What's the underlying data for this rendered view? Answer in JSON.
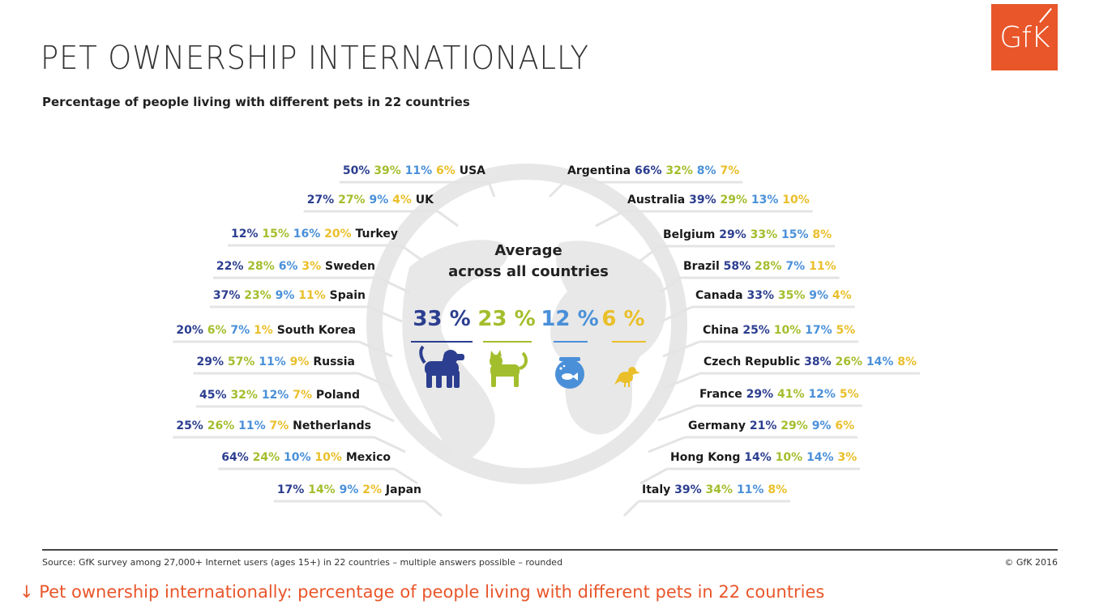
{
  "header": {
    "title": "PET OWNERSHIP INTERNATIONALLY",
    "subtitle": "Percentage of people living with different pets in 22 countries",
    "logo_text": "GfK"
  },
  "footer": {
    "source": "Source:  GfK survey among 27,000+ Internet users (ages 15+) in 22 countries – multiple answers possible – rounded",
    "copyright": "© GfK 2016"
  },
  "caption": "↓ Pet ownership internationally: percentage of people living with different pets in 22 countries",
  "colors": {
    "dog": "#2c3e8f",
    "cat": "#a3be2d",
    "fish": "#4a90d9",
    "bird": "#eabf2a",
    "globe": "#e7e7e7",
    "brand": "#e8562a"
  },
  "chart_data": {
    "type": "table",
    "series_icons": [
      "dog-icon",
      "cat-icon",
      "fish-icon",
      "bird-icon"
    ],
    "average": {
      "label_line1": "Average",
      "label_line2": "across all countries",
      "values": [
        "33 %",
        "23 %",
        "12 %",
        "6 %"
      ]
    },
    "left": [
      {
        "country": "USA",
        "values": [
          "50%",
          "39%",
          "11%",
          "6%"
        ]
      },
      {
        "country": "UK",
        "values": [
          "27%",
          "27%",
          "9%",
          "4%"
        ]
      },
      {
        "country": "Turkey",
        "values": [
          "12%",
          "15%",
          "16%",
          "20%"
        ]
      },
      {
        "country": "Sweden",
        "values": [
          "22%",
          "28%",
          "6%",
          "3%"
        ]
      },
      {
        "country": "Spain",
        "values": [
          "37%",
          "23%",
          "9%",
          "11%"
        ]
      },
      {
        "country": "South Korea",
        "values": [
          "20%",
          "6%",
          "7%",
          "1%"
        ]
      },
      {
        "country": "Russia",
        "values": [
          "29%",
          "57%",
          "11%",
          "9%"
        ]
      },
      {
        "country": "Poland",
        "values": [
          "45%",
          "32%",
          "12%",
          "7%"
        ]
      },
      {
        "country": "Netherlands",
        "values": [
          "25%",
          "26%",
          "11%",
          "7%"
        ]
      },
      {
        "country": "Mexico",
        "values": [
          "64%",
          "24%",
          "10%",
          "10%"
        ]
      },
      {
        "country": "Japan",
        "values": [
          "17%",
          "14%",
          "9%",
          "2%"
        ]
      }
    ],
    "right": [
      {
        "country": "Argentina",
        "values": [
          "66%",
          "32%",
          "8%",
          "7%"
        ]
      },
      {
        "country": "Australia",
        "values": [
          "39%",
          "29%",
          "13%",
          "10%"
        ]
      },
      {
        "country": "Belgium",
        "values": [
          "29%",
          "33%",
          "15%",
          "8%"
        ]
      },
      {
        "country": "Brazil",
        "values": [
          "58%",
          "28%",
          "7%",
          "11%"
        ]
      },
      {
        "country": "Canada",
        "values": [
          "33%",
          "35%",
          "9%",
          "4%"
        ]
      },
      {
        "country": "China",
        "values": [
          "25%",
          "10%",
          "17%",
          "5%"
        ]
      },
      {
        "country": "Czech Republic",
        "values": [
          "38%",
          "26%",
          "14%",
          "8%"
        ]
      },
      {
        "country": "France",
        "values": [
          "29%",
          "41%",
          "12%",
          "5%"
        ]
      },
      {
        "country": "Germany",
        "values": [
          "21%",
          "29%",
          "9%",
          "6%"
        ]
      },
      {
        "country": "Hong Kong",
        "values": [
          "14%",
          "10%",
          "14%",
          "3%"
        ]
      },
      {
        "country": "Italy",
        "values": [
          "39%",
          "34%",
          "11%",
          "8%"
        ]
      }
    ]
  }
}
